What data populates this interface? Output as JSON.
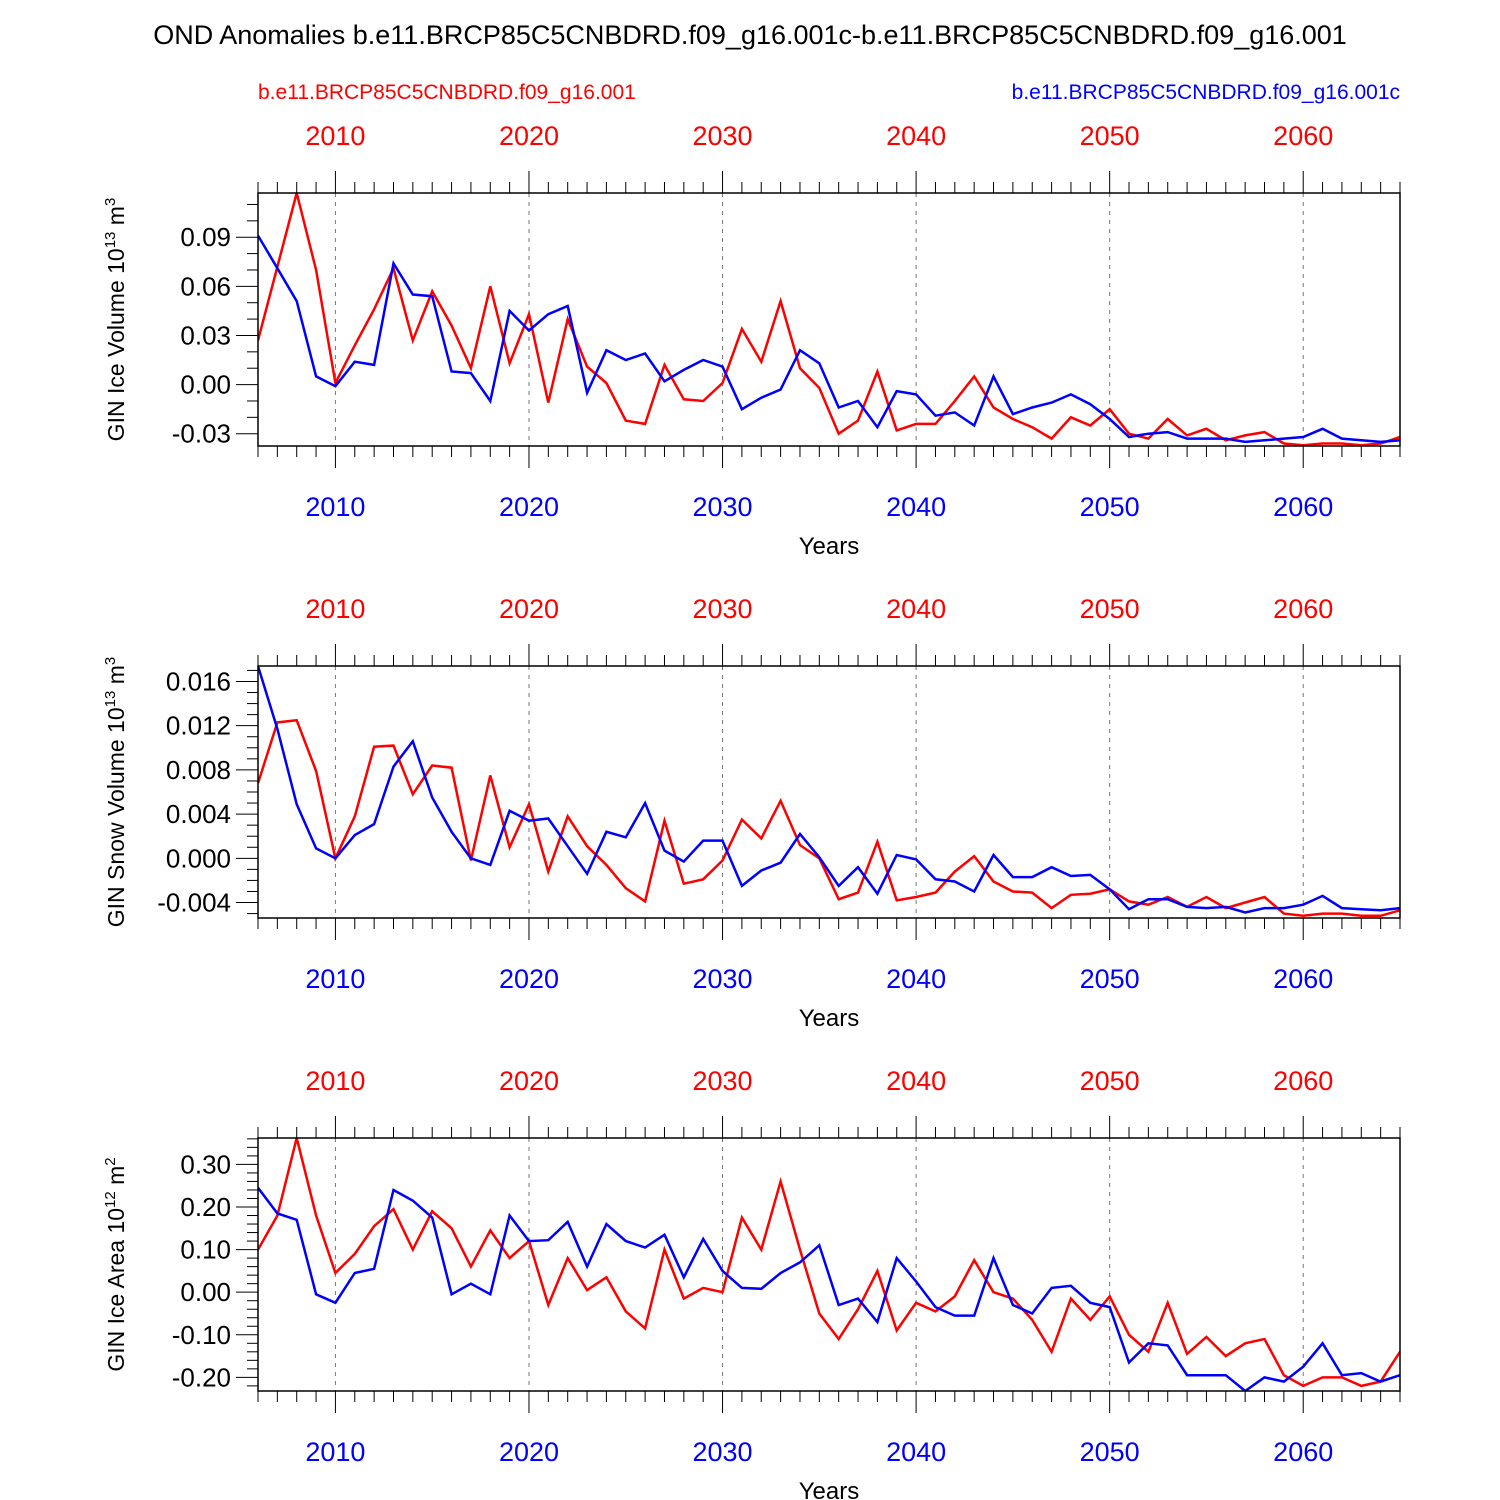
{
  "header": {
    "title": "OND Anomalies b.e11.BRCP85C5CNBDRD.f09_g16.001c-b.e11.BRCP85C5CNBDRD.f09_g16.001",
    "legend_red": "b.e11.BRCP85C5CNBDRD.f09_g16.001",
    "legend_blue": "b.e11.BRCP85C5CNBDRD.f09_g16.001c"
  },
  "colors": {
    "red": "#ff0000",
    "blue": "#0000ff",
    "axis": "#000000",
    "grid": "#777777"
  },
  "chart_data": [
    {
      "type": "line",
      "title": "",
      "xlabel": "Years",
      "ylabel_text": "GIN Ice Volume 10",
      "ylabel_exp": "13",
      "ylabel_unit": "m",
      "ylabel_unit_exp": "3",
      "xlim": [
        2006,
        2065
      ],
      "ylim": [
        -0.0375,
        0.117
      ],
      "yticks": [
        -0.03,
        0.0,
        0.03,
        0.06,
        0.09
      ],
      "ytick_labels": [
        "-0.03",
        "0.00",
        "0.03",
        "0.06",
        "0.09"
      ],
      "yminor_step": 0.01,
      "xticks": [
        2010,
        2020,
        2030,
        2040,
        2050,
        2060
      ],
      "xtick_labels": [
        "2010",
        "2020",
        "2030",
        "2040",
        "2050",
        "2060"
      ],
      "x_start": 2006,
      "series": [
        {
          "name": "b.e11.BRCP85C5CNBDRD.f09_g16.001",
          "color": "red",
          "values": [
            0.027,
            0.072,
            0.117,
            0.07,
            0.001,
            0.024,
            0.046,
            0.071,
            0.027,
            0.057,
            0.036,
            0.01,
            0.06,
            0.013,
            0.043,
            -0.011,
            0.04,
            0.011,
            0.001,
            -0.022,
            -0.024,
            0.012,
            -0.009,
            -0.01,
            0.001,
            0.034,
            0.014,
            0.051,
            0.01,
            -0.002,
            -0.03,
            -0.022,
            0.008,
            -0.028,
            -0.024,
            -0.024,
            -0.01,
            0.005,
            -0.014,
            -0.021,
            -0.026,
            -0.033,
            -0.02,
            -0.025,
            -0.015,
            -0.03,
            -0.033,
            -0.021,
            -0.031,
            -0.027,
            -0.034,
            -0.031,
            -0.029,
            -0.036,
            -0.037,
            -0.036,
            -0.036,
            -0.037,
            -0.036,
            -0.032
          ]
        },
        {
          "name": "b.e11.BRCP85C5CNBDRD.f09_g16.001c",
          "color": "blue",
          "values": [
            0.091,
            0.071,
            0.051,
            0.005,
            -0.001,
            0.014,
            0.012,
            0.074,
            0.055,
            0.054,
            0.008,
            0.007,
            -0.01,
            0.045,
            0.033,
            0.043,
            0.048,
            -0.005,
            0.021,
            0.015,
            0.019,
            0.002,
            0.009,
            0.015,
            0.011,
            -0.015,
            -0.008,
            -0.003,
            0.021,
            0.013,
            -0.014,
            -0.01,
            -0.026,
            -0.004,
            -0.006,
            -0.019,
            -0.017,
            -0.025,
            0.005,
            -0.018,
            -0.014,
            -0.011,
            -0.006,
            -0.012,
            -0.021,
            -0.032,
            -0.03,
            -0.029,
            -0.033,
            -0.033,
            -0.033,
            -0.035,
            -0.034,
            -0.033,
            -0.032,
            -0.027,
            -0.033,
            -0.034,
            -0.035,
            -0.034
          ]
        }
      ]
    },
    {
      "type": "line",
      "title": "",
      "xlabel": "Years",
      "ylabel_text": "GIN Snow Volume 10",
      "ylabel_exp": "13",
      "ylabel_unit": "m",
      "ylabel_unit_exp": "3",
      "xlim": [
        2006,
        2065
      ],
      "ylim": [
        -0.0054,
        0.0174
      ],
      "yticks": [
        -0.004,
        0.0,
        0.004,
        0.008,
        0.012,
        0.016
      ],
      "ytick_labels": [
        "-0.004",
        "0.000",
        "0.004",
        "0.008",
        "0.012",
        "0.016"
      ],
      "yminor_step": 0.001,
      "xticks": [
        2010,
        2020,
        2030,
        2040,
        2050,
        2060
      ],
      "xtick_labels": [
        "2010",
        "2020",
        "2030",
        "2040",
        "2050",
        "2060"
      ],
      "x_start": 2006,
      "series": [
        {
          "name": "b.e11.BRCP85C5CNBDRD.f09_g16.001",
          "color": "red",
          "values": [
            0.0068,
            0.0123,
            0.0125,
            0.0079,
            0.0,
            0.0038,
            0.0101,
            0.0102,
            0.0058,
            0.0084,
            0.0082,
            -0.0002,
            0.0075,
            0.001,
            0.0049,
            -0.0012,
            0.0038,
            0.0011,
            -0.0006,
            -0.0027,
            -0.0039,
            0.0034,
            -0.0023,
            -0.0019,
            -0.0002,
            0.0035,
            0.0018,
            0.0052,
            0.0012,
            0.0,
            -0.0037,
            -0.0031,
            0.0015,
            -0.0038,
            -0.0035,
            -0.0031,
            -0.0012,
            0.0002,
            -0.0021,
            -0.003,
            -0.0031,
            -0.0045,
            -0.0033,
            -0.0032,
            -0.0028,
            -0.0039,
            -0.0042,
            -0.0035,
            -0.0044,
            -0.0035,
            -0.0045,
            -0.004,
            -0.0035,
            -0.005,
            -0.0052,
            -0.005,
            -0.005,
            -0.0052,
            -0.0052,
            -0.0047
          ]
        },
        {
          "name": "b.e11.BRCP85C5CNBDRD.f09_g16.001c",
          "color": "blue",
          "values": [
            0.0174,
            0.0117,
            0.0049,
            0.0009,
            0.0,
            0.0021,
            0.0031,
            0.0083,
            0.0106,
            0.0055,
            0.0024,
            0.0,
            -0.0006,
            0.0043,
            0.0034,
            0.0036,
            0.0011,
            -0.0014,
            0.0024,
            0.0019,
            0.005,
            0.0007,
            -0.0003,
            0.0016,
            0.0016,
            -0.0025,
            -0.0011,
            -0.0004,
            0.0022,
            0.0001,
            -0.0025,
            -0.0008,
            -0.0032,
            0.0003,
            -0.0001,
            -0.0019,
            -0.0021,
            -0.003,
            0.0003,
            -0.0017,
            -0.0017,
            -0.0008,
            -0.0016,
            -0.0015,
            -0.0028,
            -0.0046,
            -0.0037,
            -0.0037,
            -0.0044,
            -0.0045,
            -0.0044,
            -0.0049,
            -0.0045,
            -0.0045,
            -0.0042,
            -0.0034,
            -0.0045,
            -0.0046,
            -0.0047,
            -0.0045
          ]
        }
      ]
    },
    {
      "type": "line",
      "title": "",
      "xlabel": "Years",
      "ylabel_text": "GIN Ice Area 10",
      "ylabel_exp": "12",
      "ylabel_unit": "m",
      "ylabel_unit_exp": "2",
      "xlim": [
        2006,
        2065
      ],
      "ylim": [
        -0.232,
        0.362
      ],
      "yticks": [
        -0.2,
        -0.1,
        0.0,
        0.1,
        0.2,
        0.3
      ],
      "ytick_labels": [
        "-0.20",
        "-0.10",
        "0.00",
        "0.10",
        "0.20",
        "0.30"
      ],
      "yminor_step": 0.02,
      "xticks": [
        2010,
        2020,
        2030,
        2040,
        2050,
        2060
      ],
      "xtick_labels": [
        "2010",
        "2020",
        "2030",
        "2040",
        "2050",
        "2060"
      ],
      "x_start": 2006,
      "series": [
        {
          "name": "b.e11.BRCP85C5CNBDRD.f09_g16.001",
          "color": "red",
          "values": [
            0.1,
            0.18,
            0.362,
            0.18,
            0.045,
            0.09,
            0.155,
            0.195,
            0.1,
            0.19,
            0.15,
            0.06,
            0.145,
            0.08,
            0.12,
            -0.03,
            0.08,
            0.005,
            0.035,
            -0.045,
            -0.085,
            0.1,
            -0.015,
            0.01,
            0.0,
            0.175,
            0.1,
            0.26,
            0.1,
            -0.05,
            -0.11,
            -0.04,
            0.05,
            -0.09,
            -0.025,
            -0.045,
            -0.01,
            0.075,
            0.0,
            -0.015,
            -0.065,
            -0.14,
            -0.015,
            -0.065,
            -0.01,
            -0.1,
            -0.14,
            -0.025,
            -0.145,
            -0.105,
            -0.15,
            -0.12,
            -0.11,
            -0.195,
            -0.22,
            -0.2,
            -0.2,
            -0.22,
            -0.21,
            -0.14
          ]
        },
        {
          "name": "b.e11.BRCP85C5CNBDRD.f09_g16.001c",
          "color": "blue",
          "values": [
            0.245,
            0.185,
            0.17,
            -0.005,
            -0.025,
            0.045,
            0.055,
            0.24,
            0.215,
            0.175,
            -0.005,
            0.02,
            -0.005,
            0.18,
            0.12,
            0.122,
            0.165,
            0.06,
            0.16,
            0.12,
            0.105,
            0.135,
            0.035,
            0.125,
            0.05,
            0.01,
            0.008,
            0.045,
            0.07,
            0.11,
            -0.03,
            -0.015,
            -0.07,
            0.08,
            0.025,
            -0.035,
            -0.055,
            -0.055,
            0.08,
            -0.03,
            -0.05,
            0.01,
            0.015,
            -0.025,
            -0.035,
            -0.165,
            -0.12,
            -0.125,
            -0.195,
            -0.195,
            -0.195,
            -0.232,
            -0.2,
            -0.21,
            -0.175,
            -0.12,
            -0.195,
            -0.19,
            -0.21,
            -0.195
          ]
        }
      ]
    }
  ]
}
